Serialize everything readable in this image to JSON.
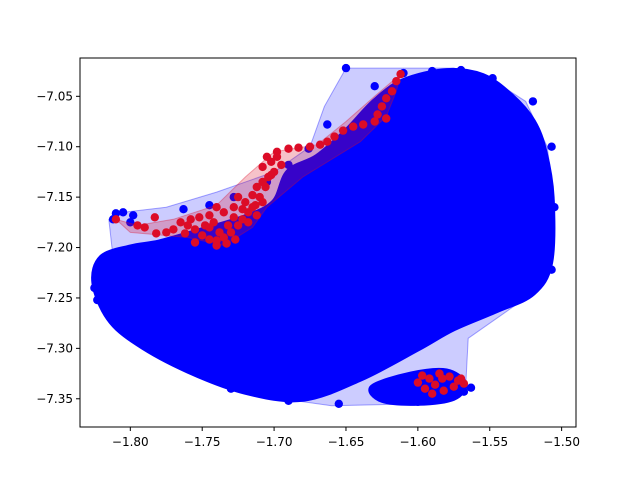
{
  "chart_data": {
    "type": "scatter",
    "title": "",
    "xlabel": "",
    "ylabel": "",
    "xlim": [
      -1.835,
      -1.49
    ],
    "ylim": [
      -7.378,
      -7.012
    ],
    "xticks": [
      -1.8,
      -1.75,
      -1.7,
      -1.65,
      -1.6,
      -1.55,
      -1.5
    ],
    "xtick_labels": [
      "−1.80",
      "−1.75",
      "−1.70",
      "−1.65",
      "−1.60",
      "−1.55",
      "−1.50"
    ],
    "yticks": [
      -7.05,
      -7.1,
      -7.15,
      -7.2,
      -7.25,
      -7.3,
      -7.35
    ],
    "ytick_labels": [
      "−7.05",
      "−7.10",
      "−7.15",
      "−7.20",
      "−7.25",
      "−7.30",
      "−7.35"
    ],
    "grid": false,
    "legend": "none",
    "series": [
      {
        "color": "#0000ff",
        "hull_fill": "rgba(0,0,255,0.2)",
        "hull": [
          [
            -1.65,
            -7.022
          ],
          [
            -1.61,
            -7.022
          ],
          [
            -1.575,
            -7.022
          ],
          [
            -1.55,
            -7.032
          ],
          [
            -1.525,
            -7.055
          ],
          [
            -1.51,
            -7.1
          ],
          [
            -1.505,
            -7.155
          ],
          [
            -1.507,
            -7.22
          ],
          [
            -1.525,
            -7.25
          ],
          [
            -1.565,
            -7.29
          ],
          [
            -1.567,
            -7.345
          ],
          [
            -1.6,
            -7.355
          ],
          [
            -1.66,
            -7.357
          ],
          [
            -1.72,
            -7.345
          ],
          [
            -1.775,
            -7.31
          ],
          [
            -1.81,
            -7.27
          ],
          [
            -1.825,
            -7.245
          ],
          [
            -1.812,
            -7.21
          ],
          [
            -1.815,
            -7.172
          ],
          [
            -1.805,
            -7.165
          ],
          [
            -1.775,
            -7.16
          ],
          [
            -1.74,
            -7.145
          ],
          [
            -1.7,
            -7.125
          ],
          [
            -1.675,
            -7.1
          ],
          [
            -1.665,
            -7.06
          ]
        ],
        "body": [
          [
            -1.825,
            -7.235
          ],
          [
            -1.82,
            -7.21
          ],
          [
            -1.8,
            -7.2
          ],
          [
            -1.78,
            -7.195
          ],
          [
            -1.755,
            -7.185
          ],
          [
            -1.72,
            -7.17
          ],
          [
            -1.7,
            -7.155
          ],
          [
            -1.69,
            -7.125
          ],
          [
            -1.67,
            -7.11
          ],
          [
            -1.65,
            -7.085
          ],
          [
            -1.63,
            -7.055
          ],
          [
            -1.61,
            -7.035
          ],
          [
            -1.58,
            -7.025
          ],
          [
            -1.555,
            -7.03
          ],
          [
            -1.535,
            -7.05
          ],
          [
            -1.52,
            -7.075
          ],
          [
            -1.512,
            -7.105
          ],
          [
            -1.507,
            -7.15
          ],
          [
            -1.508,
            -7.215
          ],
          [
            -1.52,
            -7.245
          ],
          [
            -1.545,
            -7.262
          ],
          [
            -1.575,
            -7.28
          ],
          [
            -1.6,
            -7.3
          ],
          [
            -1.64,
            -7.33
          ],
          [
            -1.68,
            -7.35
          ],
          [
            -1.72,
            -7.343
          ],
          [
            -1.76,
            -7.322
          ],
          [
            -1.795,
            -7.295
          ],
          [
            -1.815,
            -7.27
          ]
        ],
        "lobe": [
          [
            -1.605,
            -7.325
          ],
          [
            -1.58,
            -7.322
          ],
          [
            -1.567,
            -7.335
          ],
          [
            -1.575,
            -7.35
          ],
          [
            -1.6,
            -7.355
          ],
          [
            -1.625,
            -7.352
          ],
          [
            -1.632,
            -7.338
          ]
        ],
        "points": [
          [
            -1.65,
            -7.022
          ],
          [
            -1.81,
            -7.166
          ],
          [
            -1.805,
            -7.165
          ],
          [
            -1.798,
            -7.168
          ],
          [
            -1.812,
            -7.172
          ],
          [
            -1.8,
            -7.175
          ],
          [
            -1.763,
            -7.162
          ],
          [
            -1.745,
            -7.158
          ],
          [
            -1.728,
            -7.15
          ],
          [
            -1.705,
            -7.135
          ],
          [
            -1.69,
            -7.118
          ],
          [
            -1.676,
            -7.102
          ],
          [
            -1.663,
            -7.078
          ],
          [
            -1.63,
            -7.04
          ],
          [
            -1.61,
            -7.027
          ],
          [
            -1.59,
            -7.025
          ],
          [
            -1.57,
            -7.024
          ],
          [
            -1.548,
            -7.032
          ],
          [
            -1.52,
            -7.055
          ],
          [
            -1.507,
            -7.1
          ],
          [
            -1.505,
            -7.16
          ],
          [
            -1.507,
            -7.222
          ],
          [
            -1.825,
            -7.24
          ],
          [
            -1.823,
            -7.252
          ],
          [
            -1.772,
            -7.312
          ],
          [
            -1.73,
            -7.34
          ],
          [
            -1.69,
            -7.352
          ],
          [
            -1.655,
            -7.355
          ],
          [
            -1.62,
            -7.35
          ],
          [
            -1.568,
            -7.343
          ],
          [
            -1.563,
            -7.339
          ],
          [
            -1.6,
            -7.353
          ]
        ]
      },
      {
        "color": "#dc0c27",
        "hull_fill": "rgba(220,12,39,0.25)",
        "hull": [
          [
            -1.612,
            -7.028
          ],
          [
            -1.63,
            -7.05
          ],
          [
            -1.65,
            -7.075
          ],
          [
            -1.67,
            -7.098
          ],
          [
            -1.7,
            -7.105
          ],
          [
            -1.72,
            -7.13
          ],
          [
            -1.74,
            -7.158
          ],
          [
            -1.77,
            -7.172
          ],
          [
            -1.795,
            -7.178
          ],
          [
            -1.81,
            -7.172
          ],
          [
            -1.8,
            -7.185
          ],
          [
            -1.76,
            -7.19
          ],
          [
            -1.735,
            -7.198
          ],
          [
            -1.715,
            -7.18
          ],
          [
            -1.705,
            -7.16
          ],
          [
            -1.68,
            -7.13
          ],
          [
            -1.64,
            -7.095
          ],
          [
            -1.622,
            -7.07
          ],
          [
            -1.615,
            -7.045
          ]
        ],
        "points": [
          [
            -1.612,
            -7.028
          ],
          [
            -1.615,
            -7.035
          ],
          [
            -1.618,
            -7.045
          ],
          [
            -1.622,
            -7.052
          ],
          [
            -1.625,
            -7.06
          ],
          [
            -1.628,
            -7.068
          ],
          [
            -1.622,
            -7.072
          ],
          [
            -1.63,
            -7.075
          ],
          [
            -1.638,
            -7.078
          ],
          [
            -1.645,
            -7.08
          ],
          [
            -1.652,
            -7.084
          ],
          [
            -1.658,
            -7.09
          ],
          [
            -1.663,
            -7.095
          ],
          [
            -1.668,
            -7.098
          ],
          [
            -1.675,
            -7.1
          ],
          [
            -1.683,
            -7.101
          ],
          [
            -1.69,
            -7.102
          ],
          [
            -1.698,
            -7.105
          ],
          [
            -1.705,
            -7.11
          ],
          [
            -1.708,
            -7.12
          ],
          [
            -1.702,
            -7.128
          ],
          [
            -1.706,
            -7.14
          ],
          [
            -1.71,
            -7.15
          ],
          [
            -1.713,
            -7.158
          ],
          [
            -1.718,
            -7.165
          ],
          [
            -1.722,
            -7.172
          ],
          [
            -1.725,
            -7.178
          ],
          [
            -1.73,
            -7.185
          ],
          [
            -1.735,
            -7.19
          ],
          [
            -1.74,
            -7.193
          ],
          [
            -1.745,
            -7.192
          ],
          [
            -1.75,
            -7.188
          ],
          [
            -1.755,
            -7.182
          ],
          [
            -1.76,
            -7.178
          ],
          [
            -1.765,
            -7.175
          ],
          [
            -1.77,
            -7.182
          ],
          [
            -1.775,
            -7.185
          ],
          [
            -1.782,
            -7.186
          ],
          [
            -1.79,
            -7.18
          ],
          [
            -1.795,
            -7.178
          ],
          [
            -1.81,
            -7.172
          ],
          [
            -1.783,
            -7.17
          ],
          [
            -1.74,
            -7.16
          ],
          [
            -1.745,
            -7.168
          ],
          [
            -1.735,
            -7.165
          ],
          [
            -1.728,
            -7.16
          ],
          [
            -1.72,
            -7.155
          ],
          [
            -1.715,
            -7.148
          ],
          [
            -1.712,
            -7.14
          ],
          [
            -1.708,
            -7.135
          ],
          [
            -1.704,
            -7.13
          ],
          [
            -1.7,
            -7.125
          ],
          [
            -1.695,
            -7.118
          ],
          [
            -1.742,
            -7.175
          ],
          [
            -1.748,
            -7.178
          ],
          [
            -1.732,
            -7.178
          ],
          [
            -1.738,
            -7.185
          ],
          [
            -1.728,
            -7.17
          ],
          [
            -1.722,
            -7.162
          ],
          [
            -1.752,
            -7.17
          ],
          [
            -1.758,
            -7.172
          ],
          [
            -1.762,
            -7.186
          ],
          [
            -1.755,
            -7.195
          ],
          [
            -1.745,
            -7.18
          ],
          [
            -1.718,
            -7.175
          ],
          [
            -1.725,
            -7.15
          ],
          [
            -1.715,
            -7.16
          ],
          [
            -1.74,
            -7.198
          ],
          [
            -1.733,
            -7.196
          ],
          [
            -1.727,
            -7.192
          ],
          [
            -1.712,
            -7.168
          ],
          [
            -1.708,
            -7.155
          ],
          [
            -1.698,
            -7.11
          ],
          [
            -1.702,
            -7.115
          ],
          [
            -1.592,
            -7.33
          ],
          [
            -1.585,
            -7.325
          ],
          [
            -1.578,
            -7.328
          ],
          [
            -1.572,
            -7.332
          ],
          [
            -1.588,
            -7.336
          ],
          [
            -1.595,
            -7.34
          ],
          [
            -1.582,
            -7.342
          ],
          [
            -1.575,
            -7.338
          ],
          [
            -1.6,
            -7.334
          ],
          [
            -1.59,
            -7.345
          ],
          [
            -1.583,
            -7.33
          ],
          [
            -1.57,
            -7.33
          ],
          [
            -1.568,
            -7.335
          ],
          [
            -1.597,
            -7.327
          ]
        ]
      }
    ]
  }
}
